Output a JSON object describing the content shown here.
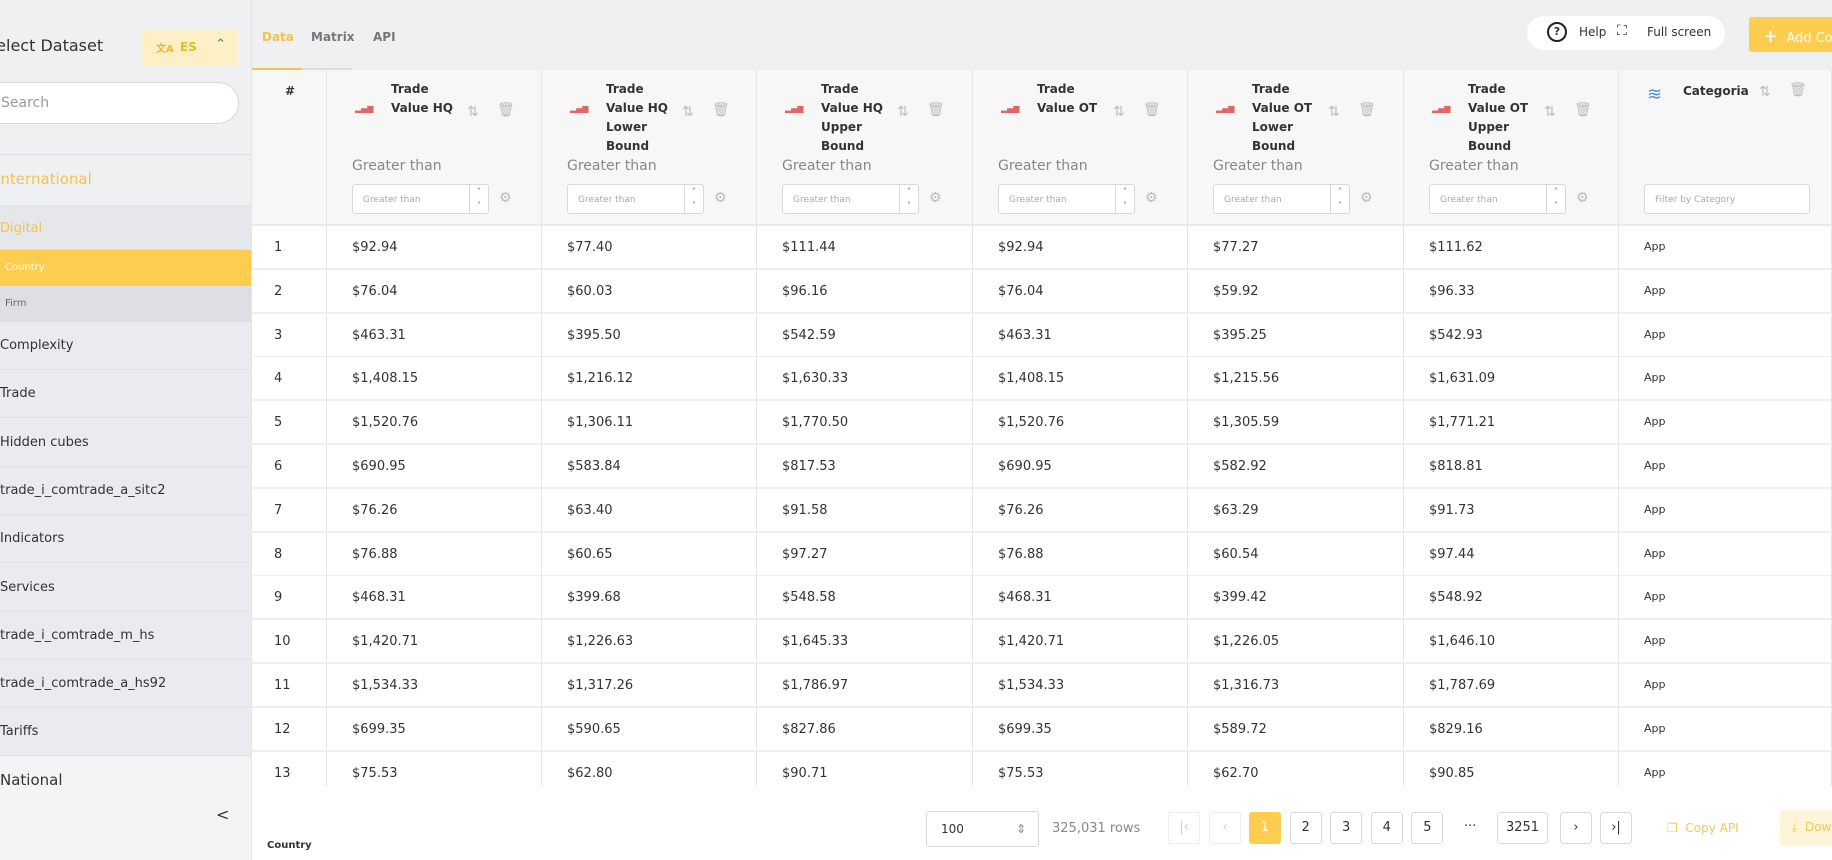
{
  "sidebar": {
    "title": "Select Dataset",
    "language": {
      "icon": "translate-icon",
      "code": "ES"
    },
    "search_placeholder": "Search",
    "group_international": "International",
    "digital": "Digital",
    "country": "Country",
    "firm": "Firm",
    "items": [
      "Complexity",
      "Trade",
      "Hidden cubes",
      "trade_i_comtrade_a_sitc2",
      "Indicators",
      "Services",
      "trade_i_comtrade_m_hs",
      "trade_i_comtrade_a_hs92",
      "Tariffs"
    ],
    "group_national": "National"
  },
  "tabs": [
    "Data",
    "Matrix",
    "API"
  ],
  "header": {
    "help": "Help",
    "fullscreen": "Full screen",
    "add": "Add Column"
  },
  "table": {
    "index_header": "#",
    "columns": [
      {
        "title": "Trade Value HQ",
        "icon": "bar-chart-icon",
        "filter_label": "Greater than",
        "filter_placeholder": "Greater than"
      },
      {
        "title": "Trade Value HQ Lower Bound",
        "icon": "bar-chart-icon",
        "filter_label": "Greater than",
        "filter_placeholder": "Greater than"
      },
      {
        "title": "Trade Value HQ Upper Bound",
        "icon": "bar-chart-icon",
        "filter_label": "Greater than",
        "filter_placeholder": "Greater than"
      },
      {
        "title": "Trade Value OT",
        "icon": "bar-chart-icon",
        "filter_label": "Greater than",
        "filter_placeholder": "Greater than"
      },
      {
        "title": "Trade Value OT Lower Bound",
        "icon": "bar-chart-icon",
        "filter_label": "Greater than",
        "filter_placeholder": "Greater than"
      },
      {
        "title": "Trade Value OT Upper Bound",
        "icon": "bar-chart-icon",
        "filter_label": "Greater than",
        "filter_placeholder": "Greater than"
      },
      {
        "title": "Categoria",
        "icon": "database-icon",
        "filter_placeholder": "Filter by Category"
      }
    ],
    "rows": [
      [
        "1",
        "$92.94",
        "$77.40",
        "$111.44",
        "$92.94",
        "$77.27",
        "$111.62",
        "App"
      ],
      [
        "2",
        "$76.04",
        "$60.03",
        "$96.16",
        "$76.04",
        "$59.92",
        "$96.33",
        "App"
      ],
      [
        "3",
        "$463.31",
        "$395.50",
        "$542.59",
        "$463.31",
        "$395.25",
        "$542.93",
        "App"
      ],
      [
        "4",
        "$1,408.15",
        "$1,216.12",
        "$1,630.33",
        "$1,408.15",
        "$1,215.56",
        "$1,631.09",
        "App"
      ],
      [
        "5",
        "$1,520.76",
        "$1,306.11",
        "$1,770.50",
        "$1,520.76",
        "$1,305.59",
        "$1,771.21",
        "App"
      ],
      [
        "6",
        "$690.95",
        "$583.84",
        "$817.53",
        "$690.95",
        "$582.92",
        "$818.81",
        "App"
      ],
      [
        "7",
        "$76.26",
        "$63.40",
        "$91.58",
        "$76.26",
        "$63.29",
        "$91.73",
        "App"
      ],
      [
        "8",
        "$76.88",
        "$60.65",
        "$97.27",
        "$76.88",
        "$60.54",
        "$97.44",
        "App"
      ],
      [
        "9",
        "$468.31",
        "$399.68",
        "$548.58",
        "$468.31",
        "$399.42",
        "$548.92",
        "App"
      ],
      [
        "10",
        "$1,420.71",
        "$1,226.63",
        "$1,645.33",
        "$1,420.71",
        "$1,226.05",
        "$1,646.10",
        "App"
      ],
      [
        "11",
        "$1,534.33",
        "$1,317.26",
        "$1,786.97",
        "$1,534.33",
        "$1,316.73",
        "$1,787.69",
        "App"
      ],
      [
        "12",
        "$699.35",
        "$590.65",
        "$827.86",
        "$699.35",
        "$589.72",
        "$829.16",
        "App"
      ],
      [
        "13",
        "$75.53",
        "$62.80",
        "$90.71",
        "$75.53",
        "$62.70",
        "$90.85",
        "App"
      ]
    ]
  },
  "footer": {
    "cube_label": "Country",
    "page_size": "100",
    "row_count": "325,031 rows",
    "pages": [
      "1",
      "2",
      "3",
      "4",
      "5"
    ],
    "ellipsis": "···",
    "last_page": "3251",
    "current_page": "1",
    "copy_api": "Copy API",
    "download": "Download"
  },
  "colors": {
    "accent": "#fccd4f",
    "bar_icon": "#e06666",
    "db_icon": "#4a90d9"
  }
}
